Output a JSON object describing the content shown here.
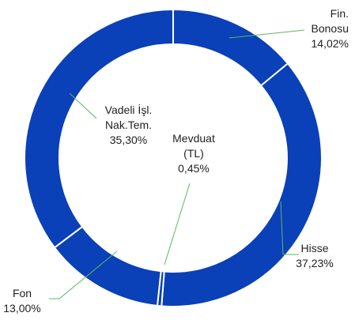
{
  "chart_data": {
    "type": "donut",
    "categories": [
      "Fin. Bonosu",
      "Hisse",
      "Mevduat (TL)",
      "Fon",
      "Vadeli İşl. Nak.Tem."
    ],
    "values": [
      14.02,
      37.23,
      0.45,
      13.0,
      35.3
    ],
    "value_labels": [
      "14,02%",
      "37,23%",
      "0,45%",
      "13,00%",
      "35,30%"
    ],
    "color": "#0a40b8"
  }
}
